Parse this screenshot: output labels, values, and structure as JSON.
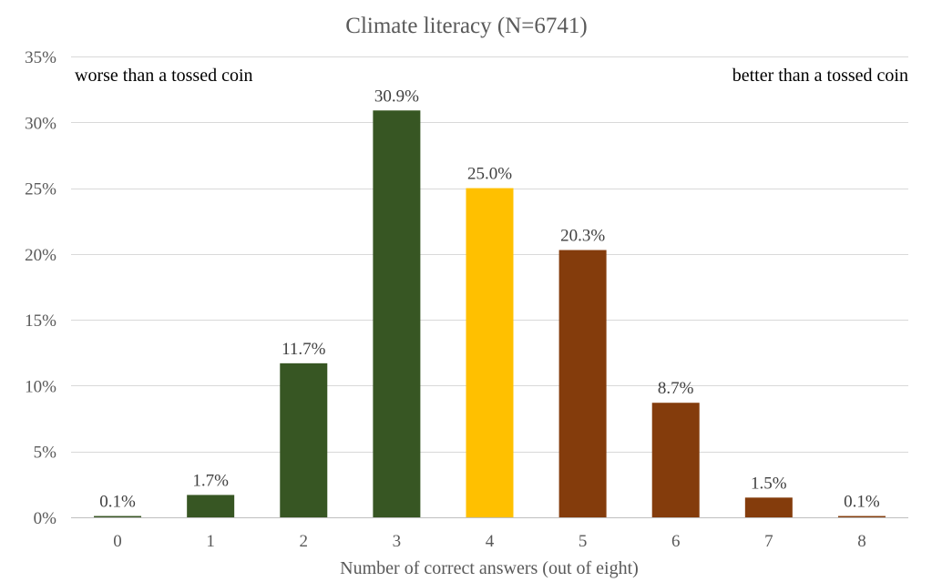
{
  "chart_data": {
    "type": "bar",
    "title": "Climate literacy (N=6741)",
    "xlabel": "Number of correct answers (out of eight)",
    "ylabel": "",
    "ylim": [
      0,
      35
    ],
    "yticks": [
      0,
      5,
      10,
      15,
      20,
      25,
      30,
      35
    ],
    "ytick_suffix": "%",
    "grid": true,
    "categories": [
      "0",
      "1",
      "2",
      "3",
      "4",
      "5",
      "6",
      "7",
      "8"
    ],
    "values": [
      0.1,
      1.7,
      11.7,
      30.9,
      25.0,
      20.3,
      8.7,
      1.5,
      0.1
    ],
    "value_labels": [
      "0.1%",
      "1.7%",
      "11.7%",
      "30.9%",
      "25.0%",
      "20.3%",
      "8.7%",
      "1.5%",
      "0.1%"
    ],
    "bar_colors": [
      "#375623",
      "#375623",
      "#375623",
      "#375623",
      "#FFC000",
      "#843C0C",
      "#843C0C",
      "#843C0C",
      "#843C0C"
    ],
    "annotations": {
      "left": "worse than a tossed coin",
      "right": "better than a tossed coin"
    }
  }
}
